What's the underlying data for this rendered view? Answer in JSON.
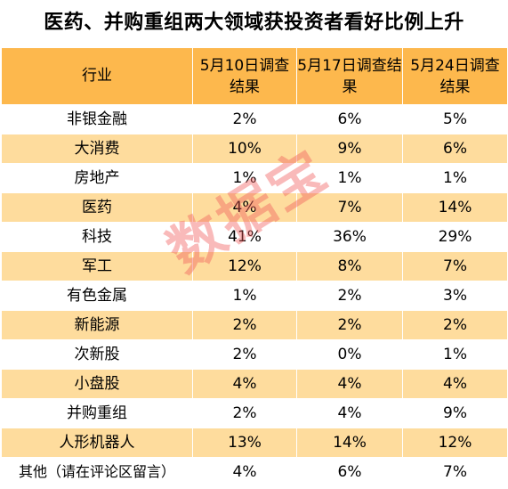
{
  "title": "医药、并购重组两大领域获投资者看好比例上升",
  "table": {
    "headers": [
      "行业",
      "5月10日调查结果",
      "5月17日调查结果",
      "5月24日调查结果"
    ],
    "rows": [
      [
        "非银金融",
        "2%",
        "6%",
        "5%"
      ],
      [
        "大消费",
        "10%",
        "9%",
        "6%"
      ],
      [
        "房地产",
        "1%",
        "1%",
        "1%"
      ],
      [
        "医药",
        "4%",
        "7%",
        "14%"
      ],
      [
        "科技",
        "41%",
        "36%",
        "29%"
      ],
      [
        "军工",
        "12%",
        "8%",
        "7%"
      ],
      [
        "有色金属",
        "1%",
        "2%",
        "3%"
      ],
      [
        "新能源",
        "2%",
        "2%",
        "2%"
      ],
      [
        "次新股",
        "2%",
        "0%",
        "1%"
      ],
      [
        "小盘股",
        "4%",
        "4%",
        "4%"
      ],
      [
        "并购重组",
        "2%",
        "4%",
        "9%"
      ],
      [
        "人形机器人",
        "13%",
        "14%",
        "12%"
      ],
      [
        "其他（请在评论区留言）",
        "4%",
        "6%",
        "7%"
      ]
    ]
  },
  "watermark": "数据宝",
  "colors": {
    "header_bg": "#fdb84d",
    "stripe_bg": "#fedc9d",
    "watermark": "#f05a5a"
  }
}
